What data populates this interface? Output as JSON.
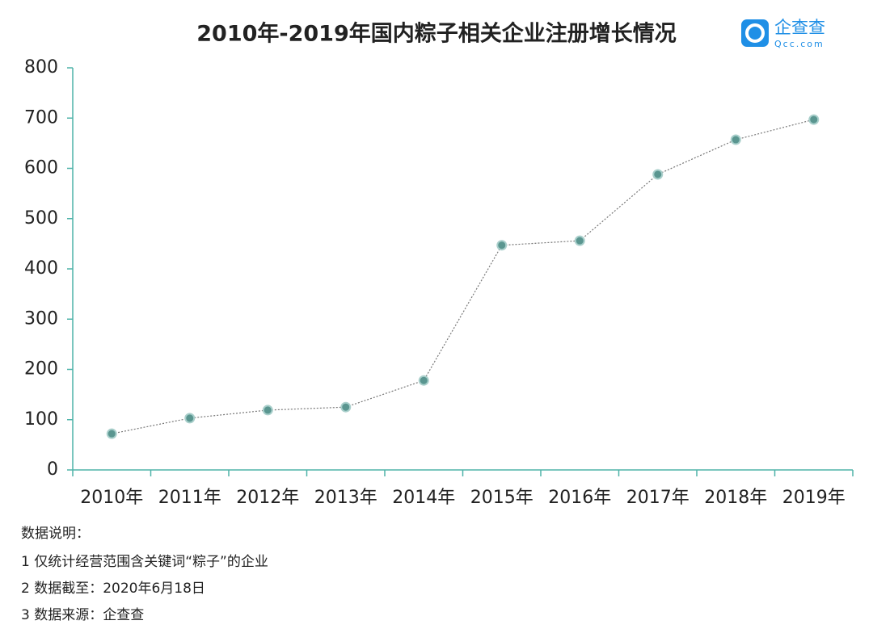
{
  "chart_data": {
    "type": "line",
    "title": "2010年-2019年国内粽子相关企业注册增长情况",
    "categories": [
      "2010年",
      "2011年",
      "2012年",
      "2013年",
      "2014年",
      "2015年",
      "2016年",
      "2017年",
      "2018年",
      "2019年"
    ],
    "values": [
      72,
      103,
      119,
      125,
      178,
      447,
      456,
      588,
      657,
      697
    ],
    "color": "#5a9690",
    "axis_color": "#4fb3a9",
    "ylim": [
      0,
      800
    ],
    "yticks": [
      0,
      100,
      200,
      300,
      400,
      500,
      600,
      700,
      800
    ],
    "grid": false
  },
  "logo": {
    "name": "企查查",
    "domain": "Qcc.com"
  },
  "notes": {
    "heading": "数据说明：",
    "items": [
      "1 仅统计经营范围含关键词“粽子”的企业",
      "2 数据截至：2020年6月18日",
      "3 数据来源：企查查"
    ]
  }
}
